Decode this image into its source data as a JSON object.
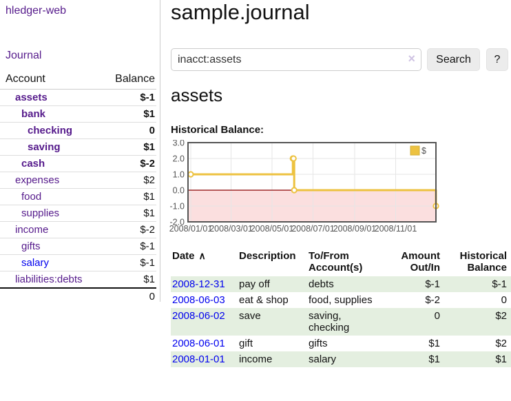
{
  "colors": {
    "link_purple": "#551a8b",
    "link_blue": "#0000ee",
    "negative_strong": "#8b1414",
    "negative_soft": "#bb6e6e",
    "row_stripe_green": "#e4efe0",
    "series_gold": "#edc240",
    "negative_region_pink": "#fbdfdf",
    "zero_line_dark_red": "#8b0000",
    "button_gray": "#ececec"
  },
  "sidebar": {
    "app_title": "hledger-web",
    "journal_label": "Journal",
    "accounts_table": {
      "header_account": "Account",
      "header_balance": "Balance",
      "rows": [
        {
          "name": "assets",
          "balance": "$-1"
        },
        {
          "name": "bank",
          "balance": "$1"
        },
        {
          "name": "checking",
          "balance": "0"
        },
        {
          "name": "saving",
          "balance": "$1"
        },
        {
          "name": "cash",
          "balance": "$-2"
        },
        {
          "name": "expenses",
          "balance": "$2"
        },
        {
          "name": "food",
          "balance": "$1"
        },
        {
          "name": "supplies",
          "balance": "$1"
        },
        {
          "name": "income",
          "balance": "$-2"
        },
        {
          "name": "gifts",
          "balance": "$-1"
        },
        {
          "name": "salary",
          "balance": "$-1"
        },
        {
          "name": "liabilities:debts",
          "balance": "$1"
        }
      ],
      "total": "0"
    }
  },
  "main": {
    "title": "sample.journal",
    "search": {
      "value": "inacct:assets",
      "clear_icon": "×",
      "search_button_label": "Search",
      "help_button_label": "?"
    },
    "account_heading": "assets",
    "chart_label": "Historical Balance:"
  },
  "chart_data": {
    "type": "line",
    "style": "step-after",
    "title": "Historical Balance:",
    "series": [
      {
        "name": "$",
        "color": "#edc240",
        "points": [
          {
            "date": "2008-01-01",
            "day": 0,
            "value": 1
          },
          {
            "date": "2008-06-01",
            "day": 152,
            "value": 2
          },
          {
            "date": "2008-06-02",
            "day": 153,
            "value": 2
          },
          {
            "date": "2008-06-03",
            "day": 154,
            "value": 0
          },
          {
            "date": "2008-12-31",
            "day": 365,
            "value": -1
          }
        ]
      }
    ],
    "x_ticks": [
      {
        "day": 0,
        "label": "2008/01/01"
      },
      {
        "day": 60,
        "label": "2008/03/01"
      },
      {
        "day": 121,
        "label": "2008/05/01"
      },
      {
        "day": 182,
        "label": "2008/07/01"
      },
      {
        "day": 244,
        "label": "2008/09/01"
      },
      {
        "day": 305,
        "label": "2008/11/01"
      }
    ],
    "y_ticks": [
      3,
      2,
      1,
      0,
      -1,
      -2
    ],
    "ylim": [
      -2,
      3
    ],
    "xlim_days": [
      0,
      365
    ],
    "grid": true,
    "legend_position": "top-right",
    "negative_region_fill": "#fbdfdf",
    "zero_line_color": "#8b0000"
  },
  "register": {
    "headers": {
      "date": "Date",
      "sort_indicator": "∧",
      "description": "Description",
      "accounts": "To/From Account(s)",
      "amount": "Amount Out/In",
      "balance": "Historical Balance"
    },
    "rows": [
      {
        "date": "2008-12-31",
        "description": "pay off",
        "accounts": "debts",
        "amount": "$-1",
        "balance": "$-1"
      },
      {
        "date": "2008-06-03",
        "description": "eat & shop",
        "accounts": "food, supplies",
        "amount": "$-2",
        "balance": "0"
      },
      {
        "date": "2008-06-02",
        "description": "save",
        "accounts": "saving, checking",
        "amount": "0",
        "balance": "$2"
      },
      {
        "date": "2008-06-01",
        "description": "gift",
        "accounts": "gifts",
        "amount": "$1",
        "balance": "$2"
      },
      {
        "date": "2008-01-01",
        "description": "income",
        "accounts": "salary",
        "amount": "$1",
        "balance": "$1"
      }
    ]
  }
}
